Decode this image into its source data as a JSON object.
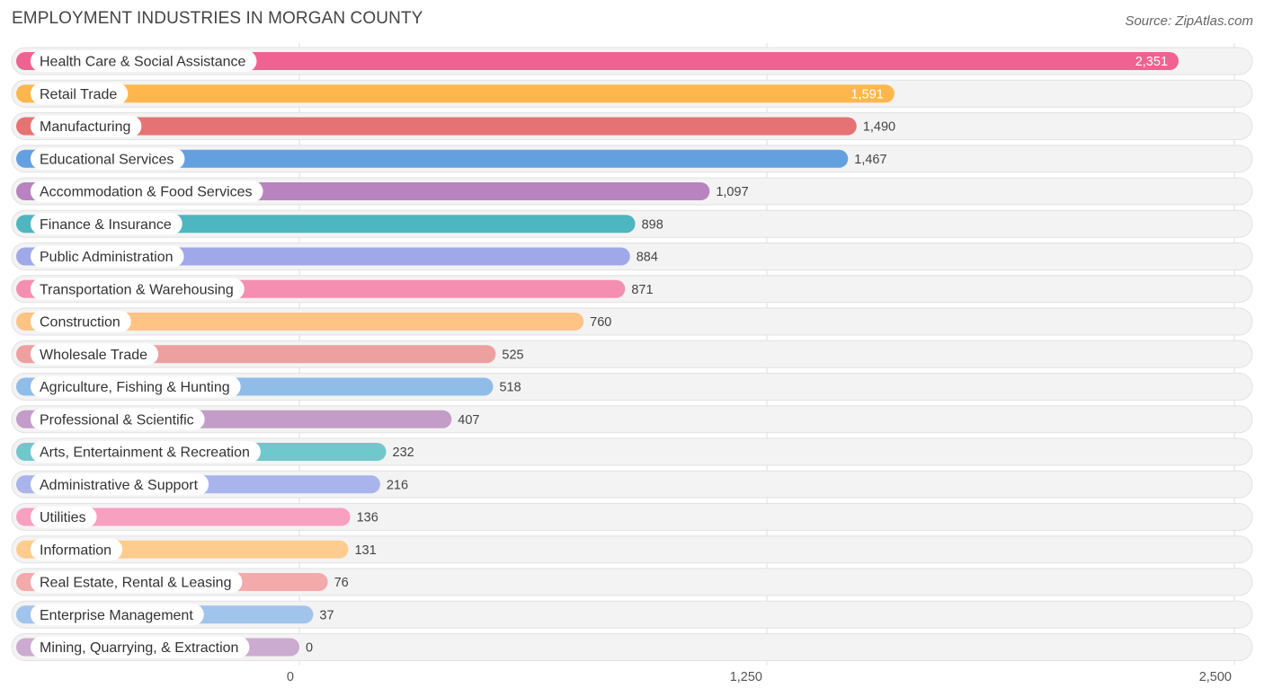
{
  "title": "EMPLOYMENT INDUSTRIES IN MORGAN COUNTY",
  "source": "Source: ZipAtlas.com",
  "chart_data": {
    "type": "bar",
    "orientation": "horizontal",
    "title": "EMPLOYMENT INDUSTRIES IN MORGAN COUNTY",
    "categories": [
      "Health Care & Social Assistance",
      "Retail Trade",
      "Manufacturing",
      "Educational Services",
      "Accommodation & Food Services",
      "Finance & Insurance",
      "Public Administration",
      "Transportation & Warehousing",
      "Construction",
      "Wholesale Trade",
      "Agriculture, Fishing & Hunting",
      "Professional & Scientific",
      "Arts, Entertainment & Recreation",
      "Administrative & Support",
      "Utilities",
      "Information",
      "Real Estate, Rental & Leasing",
      "Enterprise Management",
      "Mining, Quarrying, & Extraction"
    ],
    "values": [
      2351,
      1591,
      1490,
      1467,
      1097,
      898,
      884,
      871,
      760,
      525,
      518,
      407,
      232,
      216,
      136,
      131,
      76,
      37,
      0
    ],
    "value_labels": [
      "2,351",
      "1,591",
      "1,490",
      "1,467",
      "1,097",
      "898",
      "884",
      "871",
      "760",
      "525",
      "518",
      "407",
      "232",
      "216",
      "136",
      "131",
      "76",
      "37",
      "0"
    ],
    "colors": [
      "#f06292",
      "#ffb74d",
      "#e57373",
      "#64a0e0",
      "#b983bf",
      "#4db6c0",
      "#9fa8e8",
      "#f48fb1",
      "#ffc384",
      "#eda0a0",
      "#90bce8",
      "#c49cc8",
      "#6fc8cc",
      "#aab4ec",
      "#f7a0c0",
      "#ffcc90",
      "#f2aaaa",
      "#a0c4ec",
      "#ccabd0"
    ],
    "x_ticks": [
      0,
      1250,
      2500
    ],
    "x_tick_labels": [
      "0",
      "1,250",
      "2,500"
    ],
    "xlim": [
      0,
      2500
    ],
    "grid": true
  }
}
